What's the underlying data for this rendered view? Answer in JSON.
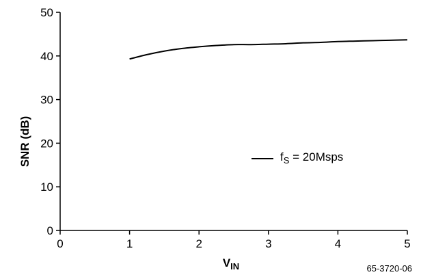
{
  "chart_data": {
    "type": "line",
    "xlabel": "V",
    "xlabel_sub": "IN",
    "ylabel": "SNR (dB)",
    "xlim": [
      0,
      5
    ],
    "ylim": [
      0,
      50
    ],
    "xticks": [
      "0",
      "1",
      "2",
      "3",
      "4",
      "5"
    ],
    "yticks": [
      "0",
      "10",
      "20",
      "30",
      "40",
      "50"
    ],
    "grid": false,
    "legend_position": "right",
    "series": [
      {
        "name": "fS = 20Msps",
        "legend": {
          "prefix": "f",
          "sub": "S",
          "suffix": " = 20Msps"
        },
        "x": [
          1.0,
          1.25,
          1.5,
          1.75,
          2.0,
          2.25,
          2.5,
          2.75,
          3.0,
          3.25,
          3.5,
          3.75,
          4.0,
          4.25,
          4.5,
          4.75,
          5.0
        ],
        "y": [
          39.3,
          40.3,
          41.1,
          41.7,
          42.1,
          42.4,
          42.6,
          42.6,
          42.7,
          42.8,
          43.0,
          43.1,
          43.3,
          43.4,
          43.5,
          43.6,
          43.7
        ]
      }
    ],
    "figure_id": "65-3720-06"
  }
}
